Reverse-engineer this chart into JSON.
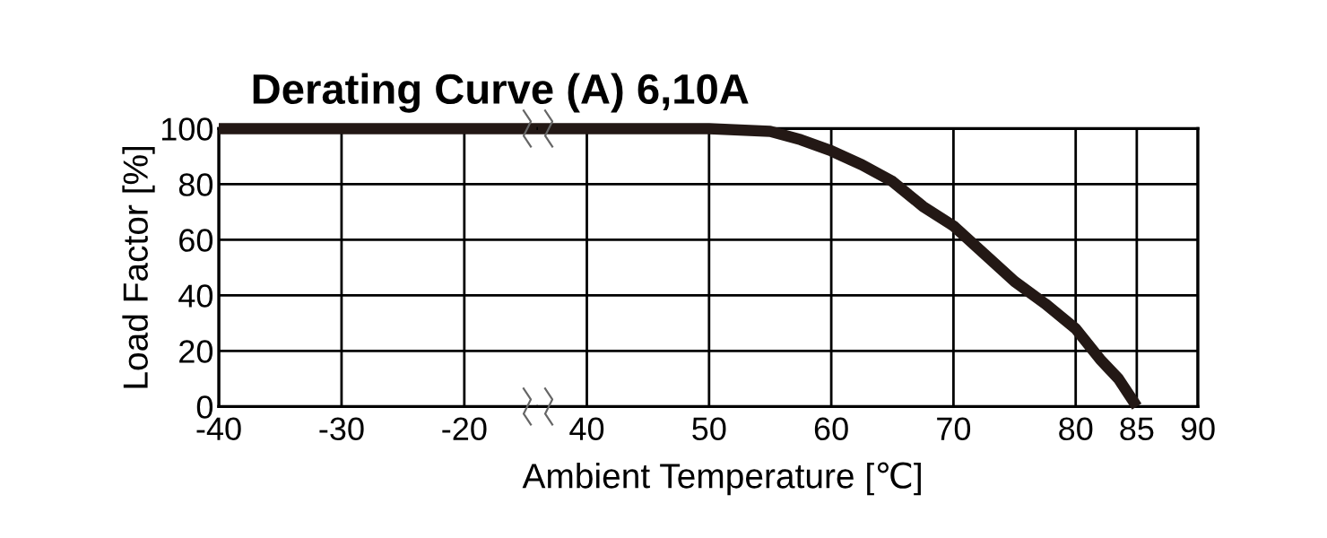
{
  "chart_data": [
    {
      "type": "line",
      "title": "Derating Curve (A) 6,10A",
      "ylabel": "Load Factor [%]",
      "x": [
        -40,
        -14
      ],
      "values": [
        100,
        100
      ],
      "color": "#231815",
      "xlim": [
        -40,
        -14
      ],
      "xticks": [
        -40,
        -30,
        -20
      ],
      "ylim": [
        0,
        100
      ],
      "yticks": [
        0,
        20,
        40,
        60,
        80,
        100
      ],
      "grid": true,
      "marker": "none",
      "line_style": "solid"
    },
    {
      "type": "line",
      "xlabel": "Ambient Temperature [℃]",
      "x": [
        36,
        50,
        55,
        57.5,
        60,
        62.5,
        65,
        67.5,
        70,
        72.5,
        75,
        77.5,
        80,
        82,
        83.5,
        85
      ],
      "values": [
        100,
        100,
        99,
        96,
        92,
        87,
        81,
        72,
        65,
        55,
        45,
        37,
        28,
        17,
        10,
        0
      ],
      "color": "#231815",
      "xlim": [
        36,
        90
      ],
      "xticks": [
        40,
        50,
        60,
        70,
        80,
        85,
        90
      ],
      "ylim": [
        0,
        100
      ],
      "yticks": [
        0,
        20,
        40,
        60,
        80,
        100
      ],
      "tick_labels": "x",
      "grid": true,
      "marker": "none",
      "line_style": "solid"
    }
  ]
}
